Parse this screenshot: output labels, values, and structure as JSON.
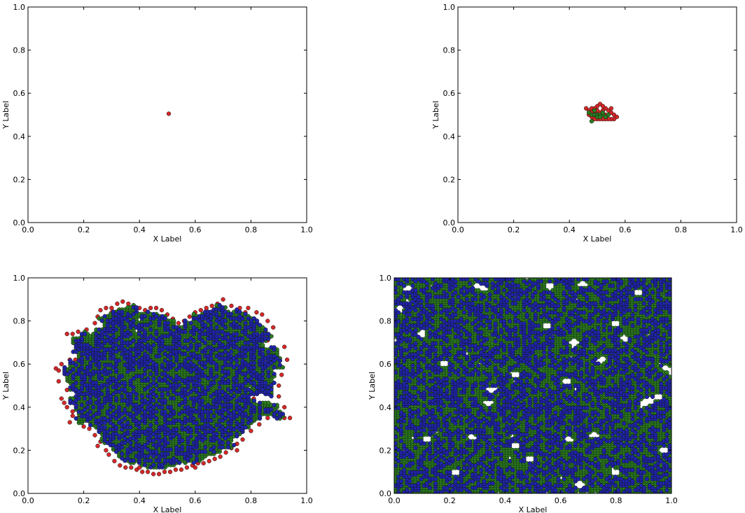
{
  "colors": {
    "red": "#d62728",
    "green": "#2a7d1f",
    "blue": "#1f24a8",
    "edge": "#111111"
  },
  "chart_data": [
    {
      "type": "scatter",
      "xlabel": "X Label",
      "ylabel": "Y Label",
      "xlim": [
        0.0,
        1.0
      ],
      "ylim": [
        0.0,
        1.0
      ],
      "xticks": [
        "0.0",
        "0.2",
        "0.4",
        "0.6",
        "0.8",
        "1.0"
      ],
      "yticks": [
        "0.0",
        "0.2",
        "0.4",
        "0.6",
        "0.8",
        "1.0"
      ],
      "grid": false,
      "series": [
        {
          "color": "red",
          "points": [
            [
              0.505,
              0.505
            ]
          ]
        }
      ]
    },
    {
      "type": "scatter",
      "xlabel": "X Label",
      "ylabel": "Y Label",
      "xlim": [
        0.0,
        1.0
      ],
      "ylim": [
        0.0,
        1.0
      ],
      "xticks": [
        "0.0",
        "0.2",
        "0.4",
        "0.6",
        "0.8",
        "1.0"
      ],
      "yticks": [
        "0.0",
        "0.2",
        "0.4",
        "0.6",
        "0.8",
        "1.0"
      ],
      "grid": false,
      "series": [
        {
          "color": "red",
          "points": [
            [
              0.46,
              0.53
            ],
            [
              0.47,
              0.52
            ],
            [
              0.48,
              0.53
            ],
            [
              0.49,
              0.51
            ],
            [
              0.5,
              0.54
            ],
            [
              0.51,
              0.55
            ],
            [
              0.52,
              0.54
            ],
            [
              0.53,
              0.53
            ],
            [
              0.54,
              0.52
            ],
            [
              0.55,
              0.51
            ],
            [
              0.56,
              0.5
            ],
            [
              0.57,
              0.49
            ],
            [
              0.56,
              0.48
            ],
            [
              0.55,
              0.48
            ],
            [
              0.54,
              0.48
            ],
            [
              0.53,
              0.48
            ],
            [
              0.52,
              0.48
            ],
            [
              0.51,
              0.48
            ],
            [
              0.5,
              0.48
            ],
            [
              0.49,
              0.48
            ],
            [
              0.48,
              0.49
            ],
            [
              0.47,
              0.5
            ],
            [
              0.52,
              0.52
            ],
            [
              0.53,
              0.5
            ],
            [
              0.5,
              0.52
            ],
            [
              0.48,
              0.51
            ],
            [
              0.55,
              0.53
            ],
            [
              0.49,
              0.53
            ],
            [
              0.51,
              0.51
            ]
          ]
        },
        {
          "color": "green",
          "points": [
            [
              0.48,
              0.5
            ],
            [
              0.49,
              0.5
            ],
            [
              0.5,
              0.5
            ],
            [
              0.51,
              0.5
            ],
            [
              0.52,
              0.5
            ],
            [
              0.5,
              0.49
            ],
            [
              0.51,
              0.49
            ],
            [
              0.52,
              0.51
            ],
            [
              0.54,
              0.5
            ],
            [
              0.53,
              0.49
            ],
            [
              0.49,
              0.52
            ],
            [
              0.47,
              0.51
            ],
            [
              0.48,
              0.47
            ]
          ]
        }
      ]
    },
    {
      "type": "scatter",
      "xlabel": "X Label",
      "ylabel": "Y Label",
      "xlim": [
        0.0,
        1.0
      ],
      "ylim": [
        0.0,
        1.0
      ],
      "xticks": [
        "0.0",
        "0.2",
        "0.4",
        "0.6",
        "0.8",
        "1.0"
      ],
      "yticks": [
        "0.0",
        "0.2",
        "0.4",
        "0.6",
        "0.8",
        "1.0"
      ],
      "grid": false,
      "series": [
        {
          "color": "red",
          "points": [
            [
              0.1,
              0.58
            ],
            [
              0.11,
              0.57
            ],
            [
              0.12,
              0.44
            ],
            [
              0.13,
              0.42
            ],
            [
              0.14,
              0.4
            ],
            [
              0.16,
              0.38
            ],
            [
              0.16,
              0.36
            ],
            [
              0.18,
              0.35
            ],
            [
              0.19,
              0.33
            ],
            [
              0.2,
              0.31
            ],
            [
              0.22,
              0.3
            ],
            [
              0.24,
              0.27
            ],
            [
              0.26,
              0.24
            ],
            [
              0.28,
              0.2
            ],
            [
              0.29,
              0.18
            ],
            [
              0.31,
              0.15
            ],
            [
              0.33,
              0.13
            ],
            [
              0.35,
              0.12
            ],
            [
              0.37,
              0.12
            ],
            [
              0.39,
              0.11
            ],
            [
              0.41,
              0.1
            ],
            [
              0.43,
              0.1
            ],
            [
              0.45,
              0.09
            ],
            [
              0.47,
              0.09
            ],
            [
              0.49,
              0.1
            ],
            [
              0.51,
              0.1
            ],
            [
              0.53,
              0.11
            ],
            [
              0.55,
              0.11
            ],
            [
              0.57,
              0.12
            ],
            [
              0.59,
              0.13
            ],
            [
              0.61,
              0.14
            ],
            [
              0.63,
              0.14
            ],
            [
              0.65,
              0.15
            ],
            [
              0.67,
              0.16
            ],
            [
              0.69,
              0.17
            ],
            [
              0.71,
              0.19
            ],
            [
              0.73,
              0.21
            ],
            [
              0.75,
              0.23
            ],
            [
              0.77,
              0.25
            ],
            [
              0.8,
              0.29
            ],
            [
              0.83,
              0.32
            ],
            [
              0.86,
              0.35
            ],
            [
              0.89,
              0.36
            ],
            [
              0.92,
              0.35
            ],
            [
              0.94,
              0.35
            ],
            [
              0.88,
              0.4
            ],
            [
              0.86,
              0.47
            ],
            [
              0.87,
              0.54
            ],
            [
              0.89,
              0.6
            ],
            [
              0.88,
              0.66
            ],
            [
              0.86,
              0.71
            ],
            [
              0.88,
              0.77
            ],
            [
              0.86,
              0.8
            ],
            [
              0.84,
              0.83
            ],
            [
              0.82,
              0.84
            ],
            [
              0.79,
              0.86
            ],
            [
              0.76,
              0.86
            ],
            [
              0.73,
              0.87
            ],
            [
              0.7,
              0.9
            ],
            [
              0.68,
              0.88
            ],
            [
              0.66,
              0.87
            ],
            [
              0.64,
              0.86
            ],
            [
              0.62,
              0.85
            ],
            [
              0.6,
              0.84
            ],
            [
              0.58,
              0.82
            ],
            [
              0.56,
              0.8
            ],
            [
              0.54,
              0.79
            ],
            [
              0.52,
              0.81
            ],
            [
              0.5,
              0.83
            ],
            [
              0.48,
              0.85
            ],
            [
              0.46,
              0.86
            ],
            [
              0.44,
              0.86
            ],
            [
              0.42,
              0.85
            ],
            [
              0.4,
              0.86
            ],
            [
              0.38,
              0.87
            ],
            [
              0.36,
              0.88
            ],
            [
              0.34,
              0.89
            ],
            [
              0.32,
              0.88
            ],
            [
              0.3,
              0.86
            ],
            [
              0.28,
              0.86
            ],
            [
              0.26,
              0.85
            ],
            [
              0.25,
              0.82
            ],
            [
              0.24,
              0.79
            ],
            [
              0.21,
              0.76
            ],
            [
              0.18,
              0.75
            ],
            [
              0.16,
              0.74
            ],
            [
              0.14,
              0.74
            ],
            [
              0.17,
              0.62
            ],
            [
              0.19,
              0.6
            ],
            [
              0.21,
              0.56
            ],
            [
              0.23,
              0.52
            ],
            [
              0.24,
              0.48
            ],
            [
              0.12,
              0.6
            ],
            [
              0.15,
              0.62
            ],
            [
              0.11,
              0.52
            ],
            [
              0.14,
              0.48
            ],
            [
              0.81,
              0.44
            ],
            [
              0.83,
              0.41
            ],
            [
              0.9,
              0.45
            ],
            [
              0.91,
              0.55
            ],
            [
              0.93,
              0.62
            ],
            [
              0.92,
              0.68
            ],
            [
              0.18,
              0.47
            ],
            [
              0.2,
              0.43
            ],
            [
              0.15,
              0.33
            ],
            [
              0.22,
              0.67
            ],
            [
              0.3,
              0.84
            ],
            [
              0.7,
              0.86
            ],
            [
              0.78,
              0.84
            ],
            [
              0.85,
              0.76
            ],
            [
              0.9,
              0.5
            ],
            [
              0.92,
              0.4
            ],
            [
              0.25,
              0.22
            ],
            [
              0.4,
              0.12
            ],
            [
              0.6,
              0.12
            ],
            [
              0.75,
              0.2
            ]
          ]
        },
        {
          "color": "green",
          "points": []
        },
        {
          "color": "blue",
          "points": []
        }
      ]
    },
    {
      "type": "scatter",
      "xlabel": "X Label",
      "ylabel": "Y Label",
      "xlim": [
        0.0,
        1.0
      ],
      "ylim": [
        0.0,
        1.0
      ],
      "xticks": [
        "0.0",
        "0.2",
        "0.4",
        "0.6",
        "0.8",
        "1.0"
      ],
      "yticks": [
        "0.0",
        "0.2",
        "0.4",
        "0.6",
        "0.8",
        "1.0"
      ],
      "grid": false,
      "series": [
        {
          "color": "green",
          "points": []
        },
        {
          "color": "blue",
          "points": []
        }
      ],
      "holes": [
        [
          0.05,
          0.95
        ],
        [
          0.3,
          0.96
        ],
        [
          0.32,
          0.95
        ],
        [
          0.56,
          0.96
        ],
        [
          0.68,
          0.97
        ],
        [
          0.88,
          0.93
        ],
        [
          0.44,
          0.55
        ],
        [
          0.18,
          0.6
        ],
        [
          0.02,
          0.86
        ],
        [
          0.35,
          0.48
        ],
        [
          0.62,
          0.52
        ],
        [
          0.65,
          0.7
        ],
        [
          0.9,
          0.42
        ],
        [
          0.92,
          0.43
        ],
        [
          0.95,
          0.45
        ],
        [
          0.72,
          0.27
        ],
        [
          0.49,
          0.16
        ],
        [
          0.34,
          0.42
        ],
        [
          0.1,
          0.74
        ],
        [
          0.8,
          0.79
        ],
        [
          0.83,
          0.72
        ],
        [
          0.63,
          0.25
        ],
        [
          0.67,
          0.04
        ],
        [
          0.22,
          0.1
        ],
        [
          0.44,
          0.22
        ],
        [
          0.8,
          0.1
        ],
        [
          0.98,
          0.58
        ],
        [
          0.28,
          0.26
        ],
        [
          0.55,
          0.78
        ],
        [
          0.97,
          0.2
        ],
        [
          0.12,
          0.25
        ],
        [
          0.75,
          0.62
        ]
      ]
    }
  ]
}
